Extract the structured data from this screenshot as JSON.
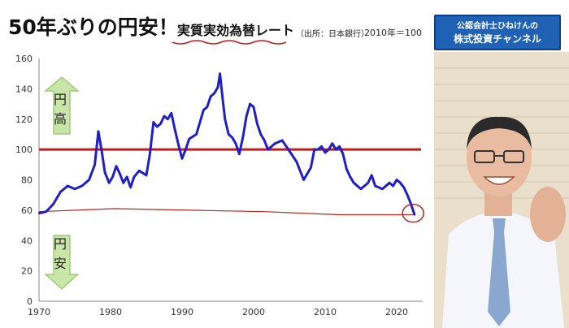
{
  "title": "50年ぶりの円安！",
  "subtitle": "実質実効為替レート",
  "subnote": "（出所：日本銀行）",
  "year_note": "2010年＝100",
  "up_label": "円高",
  "down_label": "円安",
  "channel": {
    "line1": "公認会計士ひねけんの",
    "line2": "株式投資チャンネル"
  },
  "colors": {
    "series": "#1f1fc4",
    "reference": "#c41a1a",
    "annotation": "#b3261e",
    "arrow_fill": "#c9e6a8",
    "arrow_stroke": "#8fc46a"
  },
  "chart_data": {
    "type": "line",
    "xlim": [
      1970,
      2022.5
    ],
    "ylim": [
      0,
      160
    ],
    "x_ticks": [
      1970,
      1980,
      1990,
      2000,
      2010,
      2020
    ],
    "y_ticks": [
      0,
      20,
      40,
      60,
      80,
      100,
      120,
      140,
      160
    ],
    "grid": false,
    "reference_line": 100,
    "x": [
      1970,
      1971,
      1972,
      1973,
      1974,
      1975,
      1976,
      1977,
      1977.8,
      1978.3,
      1978.8,
      1979.2,
      1979.8,
      1980.3,
      1980.8,
      1981.3,
      1981.8,
      1982.3,
      1982.8,
      1983.3,
      1984,
      1985,
      1985.5,
      1986,
      1986.5,
      1987,
      1987.5,
      1988,
      1988.5,
      1989,
      1989.5,
      1990,
      1990.5,
      1991,
      1992,
      1993,
      1993.5,
      1994,
      1994.5,
      1995,
      1995.3,
      1995.7,
      1996,
      1996.5,
      1997,
      1997.5,
      1998,
      1998.5,
      1999,
      1999.5,
      2000,
      2000.5,
      2001,
      2001.5,
      2002,
      2003,
      2004,
      2005,
      2006,
      2007,
      2008,
      2008.5,
      2009,
      2009.5,
      2010,
      2010.5,
      2011,
      2011.5,
      2012,
      2012.5,
      2013,
      2013.5,
      2014,
      2015,
      2015.5,
      2016,
      2016.5,
      2017,
      2018,
      2019,
      2019.5,
      2020,
      2020.5,
      2021,
      2021.5,
      2022,
      2022.5
    ],
    "values": [
      58,
      59,
      64,
      72,
      76,
      74,
      76,
      80,
      90,
      112,
      98,
      85,
      78,
      82,
      89,
      84,
      78,
      82,
      75,
      82,
      86,
      83,
      97,
      118,
      115,
      117,
      122,
      120,
      124,
      113,
      103,
      94,
      100,
      107,
      110,
      126,
      128,
      135,
      137,
      141,
      150,
      132,
      120,
      110,
      108,
      104,
      97,
      108,
      122,
      130,
      128,
      117,
      110,
      106,
      100,
      104,
      106,
      99,
      92,
      80,
      88,
      100,
      100,
      102,
      98,
      100,
      104,
      100,
      102,
      97,
      87,
      82,
      78,
      74,
      76,
      78,
      83,
      76,
      74,
      78,
      76,
      80,
      78,
      75,
      70,
      64,
      57
    ],
    "annotation": {
      "x": 2022.3,
      "y": 58,
      "shape": "circle"
    },
    "trend_note": {
      "type": "hand-drawn-line",
      "y": [
        59,
        61,
        60,
        59,
        57,
        57
      ]
    }
  }
}
